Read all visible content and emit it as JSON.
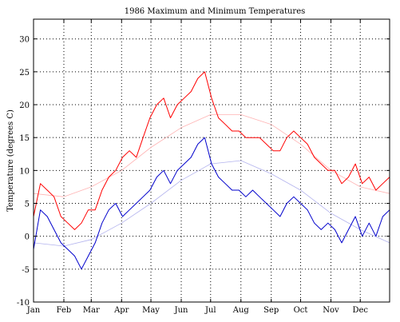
{
  "chart_data": {
    "type": "line",
    "title": "1986 Maximum and Minimum Temperatures",
    "xlabel": "",
    "ylabel": "Temperature (degrees C)",
    "ylim": [
      -10,
      33
    ],
    "xlim": [
      1,
      365
    ],
    "grid": true,
    "months": [
      "Jan",
      "Feb",
      "Mar",
      "Apr",
      "May",
      "Jun",
      "Jul",
      "Aug",
      "Sep",
      "Oct",
      "Nov",
      "Dec"
    ],
    "month_start_days": [
      1,
      32,
      60,
      91,
      121,
      152,
      182,
      213,
      244,
      274,
      305,
      335
    ],
    "yticks": [
      -10,
      -5,
      0,
      5,
      10,
      15,
      20,
      25,
      30
    ],
    "colors": {
      "max": "#ff0000",
      "min": "#0000cc",
      "max_normal": "#ffb3b3",
      "min_normal": "#b3b3ee"
    },
    "series": [
      {
        "key": "max",
        "x": [
          1,
          8,
          15,
          22,
          29,
          36,
          43,
          50,
          57,
          64,
          71,
          78,
          85,
          92,
          99,
          106,
          113,
          120,
          127,
          134,
          141,
          148,
          155,
          162,
          169,
          176,
          183,
          190,
          197,
          204,
          211,
          218,
          225,
          232,
          239,
          246,
          253,
          260,
          267,
          274,
          281,
          288,
          295,
          302,
          309,
          316,
          323,
          330,
          337,
          344,
          351,
          358,
          365
        ],
        "values": [
          3,
          8,
          7,
          6,
          3,
          2,
          1,
          2,
          4,
          4,
          7,
          9,
          10,
          12,
          13,
          12,
          15,
          18,
          20,
          21,
          18,
          20,
          21,
          22,
          24,
          25,
          21,
          18,
          17,
          16,
          16,
          15,
          15,
          15,
          14,
          13,
          13,
          15,
          16,
          15,
          14,
          12,
          11,
          10,
          10,
          8,
          9,
          11,
          8,
          9,
          7,
          8,
          9
        ]
      },
      {
        "key": "min",
        "x": [
          1,
          8,
          15,
          22,
          29,
          36,
          43,
          50,
          57,
          64,
          71,
          78,
          85,
          92,
          99,
          106,
          113,
          120,
          127,
          134,
          141,
          148,
          155,
          162,
          169,
          176,
          183,
          190,
          197,
          204,
          211,
          218,
          225,
          232,
          239,
          246,
          253,
          260,
          267,
          274,
          281,
          288,
          295,
          302,
          309,
          316,
          323,
          330,
          337,
          344,
          351,
          358,
          365
        ],
        "values": [
          -2,
          4,
          3,
          1,
          -1,
          -2,
          -3,
          -5,
          -3,
          -1,
          2,
          4,
          5,
          3,
          4,
          5,
          6,
          7,
          9,
          10,
          8,
          10,
          11,
          12,
          14,
          15,
          11,
          9,
          8,
          7,
          7,
          6,
          7,
          6,
          5,
          4,
          3,
          5,
          6,
          5,
          4,
          2,
          1,
          2,
          1,
          -1,
          1,
          3,
          0,
          2,
          0,
          3,
          4
        ]
      },
      {
        "key": "max_normal",
        "x": [
          1,
          32,
          60,
          91,
          121,
          152,
          182,
          213,
          244,
          274,
          305,
          335,
          365
        ],
        "values": [
          6.5,
          6.0,
          7.5,
          10.0,
          13.5,
          16.5,
          18.5,
          18.5,
          17.0,
          14.0,
          10.0,
          7.5,
          6.5
        ]
      },
      {
        "key": "min_normal",
        "x": [
          1,
          32,
          60,
          91,
          121,
          152,
          182,
          213,
          244,
          274,
          305,
          335,
          365
        ],
        "values": [
          -1.0,
          -1.5,
          -0.5,
          2.0,
          5.0,
          8.5,
          11.0,
          11.5,
          9.5,
          7.0,
          3.5,
          1.0,
          -1.0
        ]
      }
    ]
  }
}
